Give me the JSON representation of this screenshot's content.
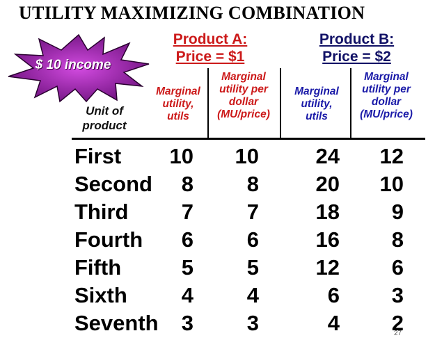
{
  "title": "UTILITY MAXIMIZING COMBINATION",
  "income_burst": "$ 10 income",
  "product_a": {
    "name": "Product A:",
    "price": "Price = $1"
  },
  "product_b": {
    "name": "Product B:",
    "price": "Price = $2"
  },
  "headers": {
    "unit": [
      "Unit of",
      "product"
    ],
    "a_mu": [
      "Marginal",
      "utility,",
      "utils"
    ],
    "a_mup": [
      "Marginal",
      "utility per",
      "dollar",
      "(MU/price)"
    ],
    "b_mu": [
      "Marginal",
      "utility,",
      "utils"
    ],
    "b_mup": [
      "Marginal",
      "utility per",
      "dollar",
      "(MU/price)"
    ]
  },
  "rows": [
    {
      "unit": "First",
      "a_mu": "10",
      "a_mup": "10",
      "b_mu": "24",
      "b_mup": "12"
    },
    {
      "unit": "Second",
      "a_mu": "8",
      "a_mup": "8",
      "b_mu": "20",
      "b_mup": "10"
    },
    {
      "unit": "Third",
      "a_mu": "7",
      "a_mup": "7",
      "b_mu": "18",
      "b_mup": "9"
    },
    {
      "unit": "Fourth",
      "a_mu": "6",
      "a_mup": "6",
      "b_mu": "16",
      "b_mup": "8"
    },
    {
      "unit": "Fifth",
      "a_mu": "5",
      "a_mup": "5",
      "b_mu": "12",
      "b_mup": "6"
    },
    {
      "unit": "Sixth",
      "a_mu": "4",
      "a_mup": "4",
      "b_mu": "6",
      "b_mup": "3"
    },
    {
      "unit": "Seventh",
      "a_mu": "3",
      "a_mup": "3",
      "b_mu": "4",
      "b_mup": "2"
    }
  ],
  "page_number": "27",
  "colors": {
    "product_a": "#cc1a1a",
    "product_b": "#1a1aa8",
    "burst": "#8a1a9a"
  }
}
